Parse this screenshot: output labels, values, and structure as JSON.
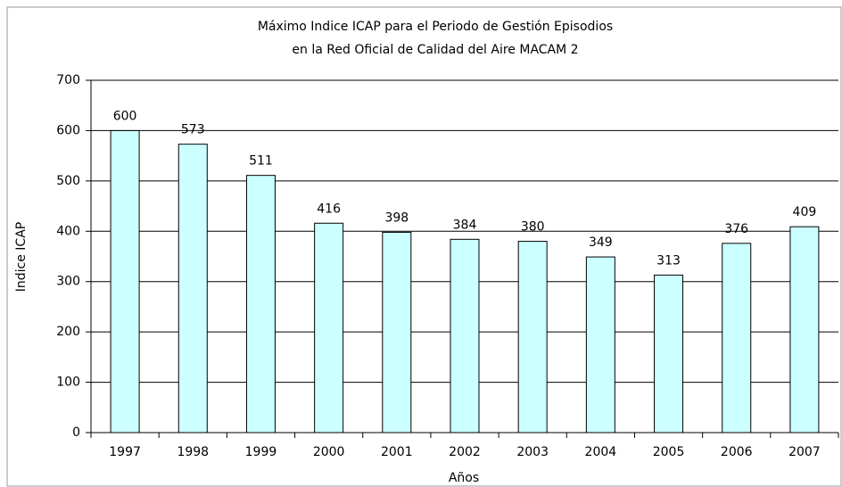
{
  "chart_data": {
    "type": "bar",
    "title": [
      "Máximo Indice ICAP para el Periodo de Gestión Episodios",
      "en la Red Oficial de Calidad del Aire MACAM 2"
    ],
    "x_label": "Años",
    "y_label": "Indice ICAP",
    "categories": [
      "1997",
      "1998",
      "1999",
      "2000",
      "2001",
      "2002",
      "2003",
      "2004",
      "2005",
      "2006",
      "2007"
    ],
    "values": [
      600,
      573,
      511,
      416,
      398,
      384,
      380,
      349,
      313,
      376,
      409
    ],
    "color": "#ccffff",
    "ylim": [
      0,
      700
    ],
    "yticks": [
      0,
      100,
      200,
      300,
      400,
      500,
      600,
      700
    ],
    "grid": true
  }
}
